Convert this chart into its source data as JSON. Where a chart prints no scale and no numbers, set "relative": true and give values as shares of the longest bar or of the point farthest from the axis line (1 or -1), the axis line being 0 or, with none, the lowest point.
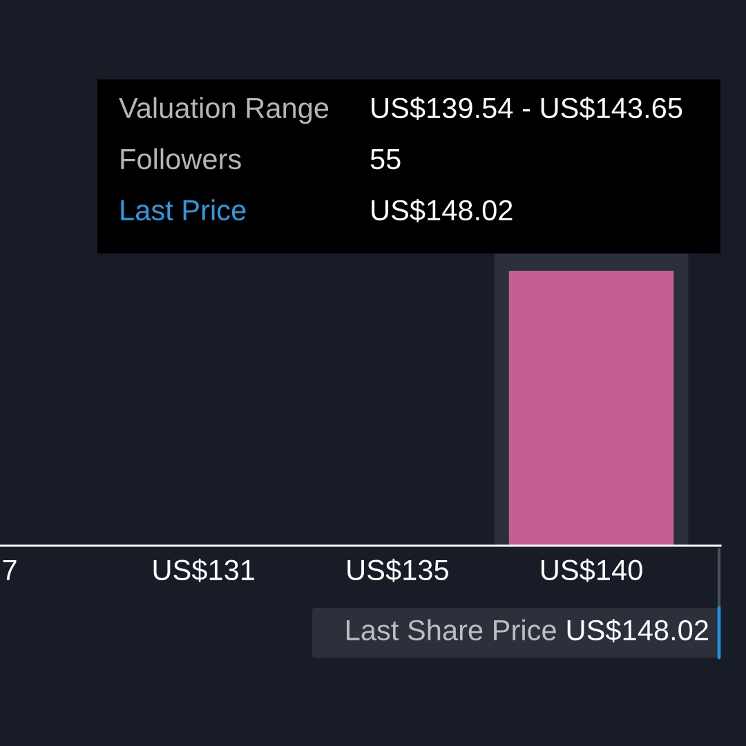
{
  "chart_data": {
    "type": "bar",
    "relative": true,
    "categories": [
      "7",
      "US$131",
      "US$135",
      "US$140"
    ],
    "values": [
      0,
      0,
      0,
      1
    ],
    "color": "#c45e95",
    "bands": [
      {
        "axis": "x",
        "from": "US$140",
        "to": "US$140",
        "color": "#2b303a"
      }
    ],
    "annotations": [
      "Valuation Range",
      "US$139.54 - US$143.65",
      "Followers",
      "55",
      "Last Price",
      "US$148.02",
      "Last Share Price",
      "US$148.02"
    ],
    "grid": false,
    "legend": false
  }
}
